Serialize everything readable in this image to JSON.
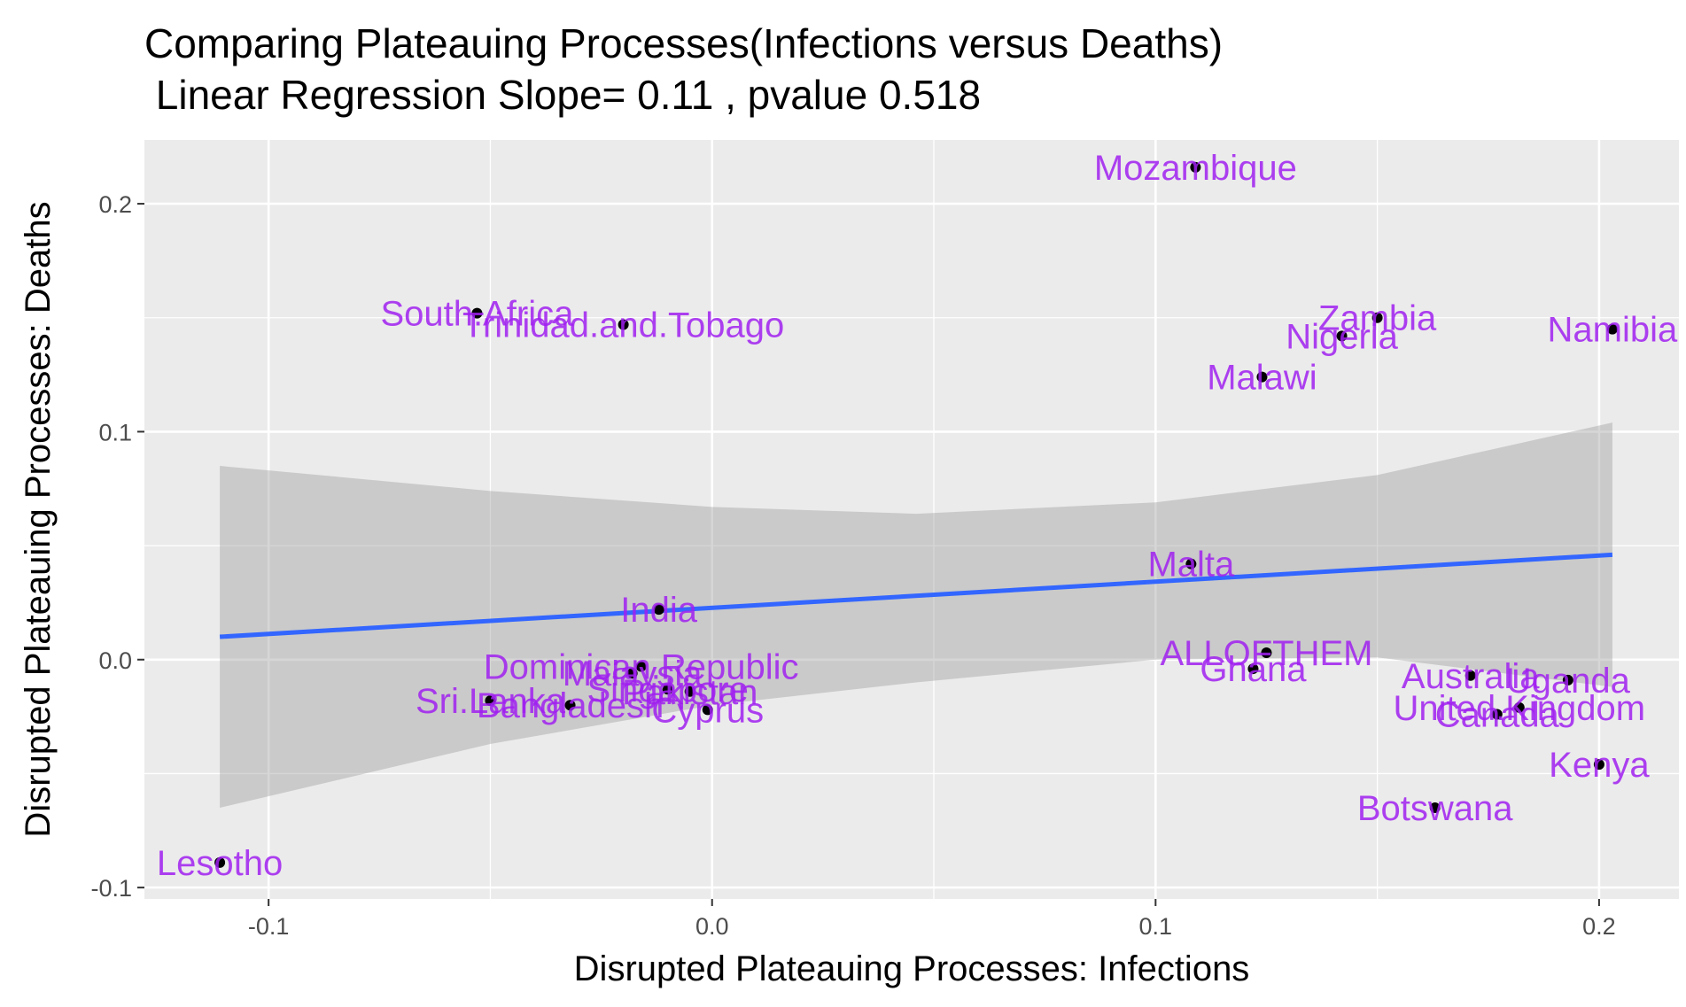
{
  "chart_data": {
    "type": "scatter",
    "title": "Comparing Plateauing Processes(Infections versus Deaths)",
    "subtitle": " Linear Regression Slope= 0.11 , pvalue 0.518",
    "xlabel": "Disrupted Plateauing Processes: Infections",
    "ylabel": "Disrupted Plateauing Processes: Deaths",
    "xlim": [
      -0.128,
      0.218
    ],
    "ylim": [
      -0.105,
      0.228
    ],
    "x_ticks": [
      -0.1,
      0.0,
      0.1,
      0.2
    ],
    "x_tick_labels": [
      "-0.1",
      "0.0",
      "0.1",
      "0.2"
    ],
    "y_ticks": [
      -0.1,
      0.0,
      0.1,
      0.2
    ],
    "y_tick_labels": [
      "-0.1",
      "0.0",
      "0.1",
      "0.2"
    ],
    "grid": true,
    "colors": {
      "panel": "#ebebeb",
      "grid": "#ffffff",
      "point": "#000000",
      "label": "#a020f0",
      "regression_line": "#3366ff",
      "confidence_band": "#999999"
    },
    "points": [
      {
        "label": "Mozambique",
        "x": 0.109,
        "y": 0.216
      },
      {
        "label": "South.Africa",
        "x": -0.053,
        "y": 0.152
      },
      {
        "label": "Trinidad.and.Tobago",
        "x": -0.02,
        "y": 0.147
      },
      {
        "label": "Zambia",
        "x": 0.15,
        "y": 0.15
      },
      {
        "label": "Nigeria",
        "x": 0.142,
        "y": 0.142
      },
      {
        "label": "Namibia",
        "x": 0.203,
        "y": 0.145
      },
      {
        "label": "Malawi",
        "x": 0.124,
        "y": 0.124
      },
      {
        "label": "Malta",
        "x": 0.108,
        "y": 0.042
      },
      {
        "label": "India",
        "x": -0.012,
        "y": 0.022
      },
      {
        "label": "ALLOFTHEM",
        "x": 0.125,
        "y": 0.003
      },
      {
        "label": "Ghana",
        "x": 0.122,
        "y": -0.004
      },
      {
        "label": "Australia",
        "x": 0.171,
        "y": -0.007
      },
      {
        "label": "Uganda",
        "x": 0.193,
        "y": -0.009
      },
      {
        "label": "Dominican.Republic",
        "x": -0.016,
        "y": -0.003
      },
      {
        "label": "Malaysia",
        "x": -0.018,
        "y": -0.006
      },
      {
        "label": "Singapore",
        "x": -0.01,
        "y": -0.013
      },
      {
        "label": "Pakistan",
        "x": -0.005,
        "y": -0.014
      },
      {
        "label": "Sri.Lanka",
        "x": -0.05,
        "y": -0.018
      },
      {
        "label": "Bangladesh",
        "x": -0.032,
        "y": -0.02
      },
      {
        "label": "Cyprus",
        "x": -0.001,
        "y": -0.022
      },
      {
        "label": "United.Kingdom",
        "x": 0.182,
        "y": -0.021
      },
      {
        "label": "Canada",
        "x": 0.177,
        "y": -0.024
      },
      {
        "label": "Kenya",
        "x": 0.2,
        "y": -0.046
      },
      {
        "label": "Botswana",
        "x": 0.163,
        "y": -0.065
      },
      {
        "label": "Lesotho",
        "x": -0.111,
        "y": -0.089
      }
    ],
    "regression": {
      "x": [
        -0.111,
        0.203
      ],
      "y": [
        0.01,
        0.046
      ],
      "band": [
        {
          "x": -0.111,
          "lo": -0.065,
          "hi": 0.085
        },
        {
          "x": -0.05,
          "lo": -0.037,
          "hi": 0.074
        },
        {
          "x": 0.0,
          "lo": -0.02,
          "hi": 0.067
        },
        {
          "x": 0.046,
          "lo": -0.01,
          "hi": 0.064
        },
        {
          "x": 0.1,
          "lo": 0.0,
          "hi": 0.069
        },
        {
          "x": 0.15,
          "lo": 0.001,
          "hi": 0.081
        },
        {
          "x": 0.203,
          "lo": -0.012,
          "hi": 0.104
        }
      ]
    }
  }
}
